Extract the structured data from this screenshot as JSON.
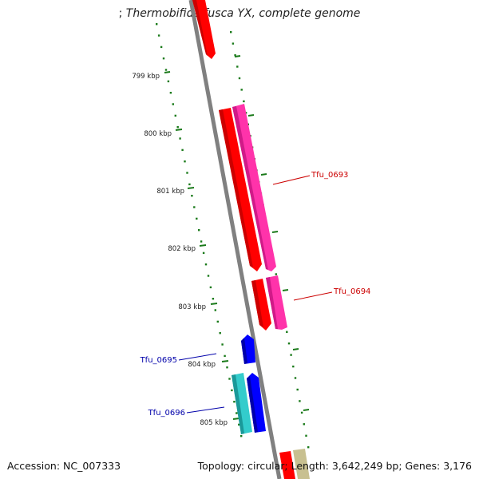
{
  "title": {
    "prefix": "; ",
    "organism": "Thermobifida fusca YX, complete genome"
  },
  "footer": {
    "accession_label": "Accession:",
    "accession": "NC_007333",
    "summary": "Topology: circular; Length: 3,642,249 bp; Genes: 3,176"
  },
  "scale": {
    "ticks": [
      "799 kbp",
      "800 kbp",
      "801 kbp",
      "802 kbp",
      "803 kbp",
      "804 kbp",
      "805 kbp"
    ]
  },
  "genes": [
    {
      "label": "Tfu_0693",
      "color": "#cc0000"
    },
    {
      "label": "Tfu_0694",
      "color": "#cc0000"
    },
    {
      "label": "Tfu_0695",
      "color": "#0000aa"
    },
    {
      "label": "Tfu_0696",
      "color": "#0000aa"
    }
  ],
  "colors": {
    "backbone": "#808080",
    "scale": "#1a7a1a",
    "feature_red": "#ff0000",
    "feature_magenta": "#ff33aa",
    "feature_blue": "#0000ff",
    "feature_cyan": "#33cccc",
    "feature_olive": "#c8c090"
  }
}
